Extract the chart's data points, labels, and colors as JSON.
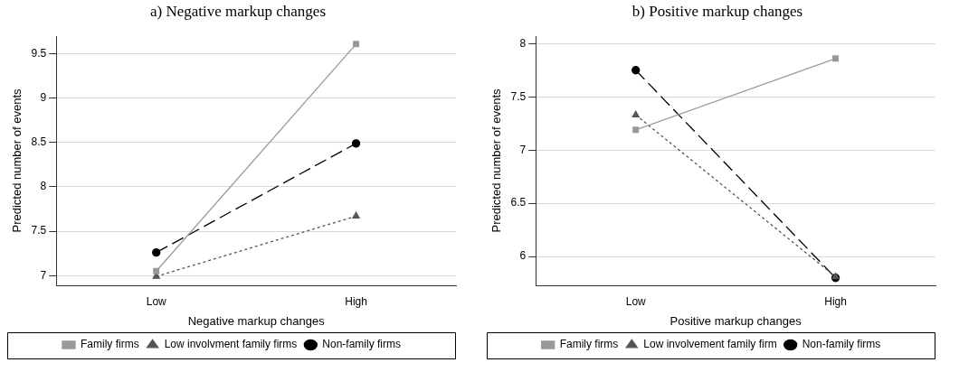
{
  "chart_data": [
    {
      "type": "line",
      "title": "a)   Negative markup changes",
      "xlabel": "Negative markup changes",
      "ylabel": "Predicted number of events",
      "categories": [
        "Low",
        "High"
      ],
      "ylim": [
        6.89,
        9.7
      ],
      "yticks": [
        7,
        7.5,
        8,
        8.5,
        9,
        9.5
      ],
      "grid": "y",
      "legend": "bottom",
      "series": [
        {
          "name": "Non-family firms",
          "color": "#000000",
          "values": [
            7.26,
            8.49
          ],
          "marker": "circle",
          "line_style": "dashed"
        },
        {
          "name": "Low involvment family firms",
          "color": "#555555",
          "values": [
            6.99,
            7.67
          ],
          "marker": "triangle",
          "line_style": "dotted"
        },
        {
          "name": "Family firms",
          "color": "#999999",
          "values": [
            7.05,
            9.61
          ],
          "marker": "square",
          "line_style": "solid"
        }
      ]
    },
    {
      "type": "line",
      "title": "b) Positive markup changes",
      "xlabel": "Positive markup changes",
      "ylabel": "Predicted number of events",
      "categories": [
        "Low",
        "High"
      ],
      "ylim": [
        5.73,
        8.07
      ],
      "yticks": [
        6,
        6.5,
        7,
        7.5,
        8
      ],
      "grid": "y",
      "legend": "bottom",
      "series": [
        {
          "name": "Non-family firms",
          "color": "#000000",
          "values": [
            7.75,
            5.8
          ],
          "marker": "circle",
          "line_style": "dashed"
        },
        {
          "name": "Low involvement family firm",
          "color": "#555555",
          "values": [
            7.33,
            5.81
          ],
          "marker": "triangle",
          "line_style": "dotted"
        },
        {
          "name": "Family firms",
          "color": "#999999",
          "values": [
            7.19,
            7.86
          ],
          "marker": "square",
          "line_style": "solid"
        }
      ]
    }
  ]
}
